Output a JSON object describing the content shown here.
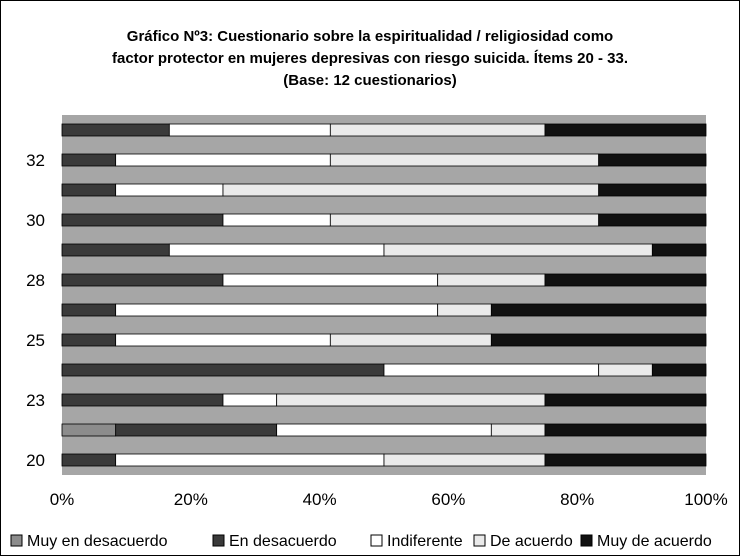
{
  "chart_data": {
    "type": "bar",
    "orientation": "horizontal",
    "stacked": "percent",
    "title_lines": [
      "Gráfico Nº3: Cuestionario sobre la espiritualidad / religiosidad como",
      "factor protector en mujeres depresivas con riesgo suicida. Ítems 20 - 33.",
      "(Base: 12 cuestionarios)"
    ],
    "xlabel": "",
    "ylabel": "",
    "xlim": [
      0,
      100
    ],
    "x_ticks": [
      "0%",
      "20%",
      "40%",
      "60%",
      "80%",
      "100%"
    ],
    "categories": [
      "20",
      "",
      "23",
      "",
      "25",
      "",
      "28",
      "",
      "30",
      "",
      "32",
      ""
    ],
    "series": [
      {
        "name": "Muy en desacuerdo",
        "color": "#8c8c8c",
        "values": [
          0,
          1,
          0,
          0,
          0,
          0,
          0,
          0,
          0,
          0,
          0,
          0
        ]
      },
      {
        "name": "En desacuerdo",
        "color": "#3a3a3a",
        "values": [
          1,
          3,
          3,
          6,
          1,
          1,
          3,
          2,
          3,
          1,
          1,
          2
        ]
      },
      {
        "name": "Indiferente",
        "color": "#ffffff",
        "values": [
          5,
          4,
          1,
          4,
          4,
          6,
          4,
          4,
          2,
          2,
          4,
          3
        ]
      },
      {
        "name": "De acuerdo",
        "color": "#eaeaea",
        "values": [
          3,
          1,
          5,
          1,
          3,
          1,
          2,
          5,
          5,
          7,
          5,
          4
        ]
      },
      {
        "name": "Muy de acuerdo",
        "color": "#111111",
        "values": [
          3,
          3,
          3,
          1,
          4,
          4,
          3,
          1,
          2,
          2,
          2,
          3
        ]
      }
    ],
    "grid": false,
    "plot_background": "#a6a6a6",
    "legend_position": "bottom"
  }
}
